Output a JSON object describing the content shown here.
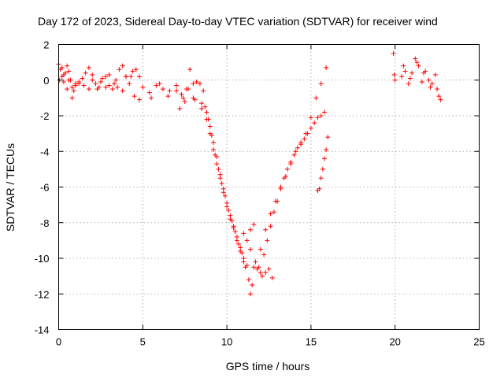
{
  "chart_data": {
    "type": "scatter",
    "title": "Day 172 of 2023, Sidereal Day-to-day VTEC variation (SDTVAR) for receiver wind",
    "xlabel": "GPS time / hours",
    "ylabel": "SDTVAR / TECUs",
    "xlim": [
      0,
      25
    ],
    "ylim": [
      -14,
      2
    ],
    "xticks": [
      0,
      5,
      10,
      15,
      20,
      25
    ],
    "yticks": [
      -14,
      -12,
      -10,
      -8,
      -6,
      -4,
      -2,
      0,
      2
    ],
    "grid": true,
    "marker": "+",
    "color": "#ff0000",
    "series": [
      {
        "name": "SDTVAR",
        "x": [
          0.0,
          0.1,
          0.2,
          0.3,
          0.4,
          0.5,
          0.6,
          0.7,
          0.8,
          0.9,
          1.0,
          1.2,
          1.4,
          1.6,
          1.8,
          2.0,
          2.2,
          2.4,
          2.6,
          2.8,
          3.0,
          3.2,
          3.4,
          3.6,
          3.8,
          4.0,
          4.2,
          4.4,
          4.6,
          4.8,
          0.05,
          0.3,
          0.6,
          1.0,
          1.5,
          2.0,
          2.5,
          3.0,
          3.5,
          4.0,
          4.5,
          0.2,
          0.5,
          0.8,
          1.2,
          1.8,
          2.3,
          2.8,
          3.3,
          3.8,
          4.3,
          4.8,
          5.0,
          5.4,
          5.8,
          6.2,
          6.6,
          7.0,
          7.2,
          7.4,
          7.6,
          7.8,
          8.0,
          8.2,
          8.4,
          8.6,
          5.5,
          6.0,
          6.5,
          7.0,
          7.5,
          8.0,
          8.5,
          7.3,
          7.7,
          8.1,
          8.5,
          8.8,
          9.0,
          9.2,
          9.4,
          9.6,
          9.8,
          10.0,
          10.2,
          10.4,
          10.6,
          10.8,
          11.0,
          11.2,
          11.3,
          11.4,
          8.7,
          8.9,
          9.1,
          9.3,
          9.5,
          9.7,
          9.9,
          10.1,
          10.3,
          10.5,
          10.7,
          10.9,
          11.1,
          11.5,
          8.8,
          9.0,
          9.2,
          9.4,
          9.6,
          9.8,
          10.0,
          10.2,
          10.4,
          10.6,
          10.8,
          11.0,
          11.6,
          11.8,
          12.0,
          12.2,
          12.4,
          12.6,
          12.8,
          13.0,
          13.2,
          13.4,
          13.6,
          13.8,
          14.0,
          14.2,
          14.4,
          14.6,
          14.8,
          15.0,
          15.2,
          15.4,
          15.6,
          15.8,
          11.4,
          11.7,
          12.0,
          12.3,
          12.6,
          12.9,
          13.2,
          13.5,
          13.8,
          14.1,
          14.4,
          14.7,
          15.0,
          15.3,
          15.6,
          15.9,
          15.4,
          15.5,
          15.6,
          15.7,
          15.8,
          15.9,
          16.0,
          11.9,
          12.1,
          12.3,
          12.5,
          12.7,
          11.0,
          11.2,
          11.4,
          11.6,
          19.9,
          19.95,
          20.0,
          20.4,
          20.6,
          20.8,
          21.0,
          21.2,
          21.4,
          21.6,
          21.8,
          22.0,
          22.2,
          22.4,
          22.6,
          22.7,
          20.5,
          20.9,
          21.3,
          21.7,
          22.1,
          22.5
        ],
        "y": [
          0.9,
          0.6,
          0.2,
          -0.1,
          0.4,
          0.8,
          0.5,
          0.0,
          -0.4,
          -0.6,
          -0.3,
          -0.2,
          0.1,
          0.4,
          0.7,
          0.3,
          -0.2,
          -0.4,
          0.1,
          0.2,
          -0.3,
          -0.5,
          0.0,
          0.6,
          0.8,
          0.2,
          -0.2,
          0.5,
          0.6,
          -1.1,
          0.0,
          0.3,
          0.0,
          -0.2,
          -0.3,
          0.0,
          -0.1,
          0.3,
          -0.4,
          0.2,
          -0.9,
          0.7,
          -0.5,
          -1.0,
          -0.1,
          -0.5,
          -0.5,
          -0.4,
          -0.2,
          -0.6,
          0.2,
          0.2,
          -0.4,
          -0.7,
          -0.3,
          -0.5,
          -0.6,
          -0.3,
          -1.6,
          -1.0,
          -0.5,
          0.6,
          -0.2,
          -0.1,
          -0.2,
          -0.6,
          -1.0,
          -0.2,
          -0.9,
          -0.6,
          -1.2,
          -1.0,
          -1.3,
          -0.8,
          -0.5,
          -1.1,
          -1.6,
          -2.2,
          -3.0,
          -3.9,
          -4.7,
          -5.5,
          -6.3,
          -7.1,
          -7.6,
          -8.2,
          -8.8,
          -9.4,
          -10.0,
          -10.4,
          -11.2,
          -12.0,
          -1.5,
          -2.2,
          -3.1,
          -4.2,
          -5.0,
          -5.8,
          -6.5,
          -7.3,
          -7.9,
          -8.5,
          -9.2,
          -9.7,
          -10.5,
          -11.5,
          -1.8,
          -2.6,
          -3.5,
          -4.3,
          -5.3,
          -6.1,
          -6.9,
          -7.8,
          -8.3,
          -9.0,
          -9.6,
          -10.2,
          -10.5,
          -10.6,
          -10.8,
          -9.8,
          -9.0,
          -8.2,
          -7.4,
          -6.8,
          -6.1,
          -5.5,
          -5.0,
          -4.6,
          -4.2,
          -3.8,
          -3.5,
          -3.3,
          -3.0,
          -2.7,
          -2.4,
          -2.1,
          -2.0,
          -1.8,
          -9.5,
          -10.2,
          -9.5,
          -8.4,
          -7.5,
          -6.8,
          -6.0,
          -5.4,
          -4.7,
          -4.0,
          -3.6,
          -3.0,
          -2.1,
          -1.0,
          -0.2,
          0.7,
          -6.2,
          -6.1,
          -5.5,
          -5.0,
          -4.4,
          -3.9,
          -3.2,
          -10.5,
          -11.0,
          -10.8,
          -10.6,
          -11.1,
          -8.6,
          -9.0,
          -8.4,
          -8.1,
          1.5,
          0.3,
          0.0,
          0.2,
          0.5,
          -0.2,
          0.4,
          1.2,
          0.8,
          -0.1,
          0.5,
          0.0,
          -0.2,
          0.3,
          -0.9,
          -1.1,
          0.8,
          0.1,
          1.0,
          0.4,
          -0.4,
          -0.5
        ]
      }
    ]
  }
}
